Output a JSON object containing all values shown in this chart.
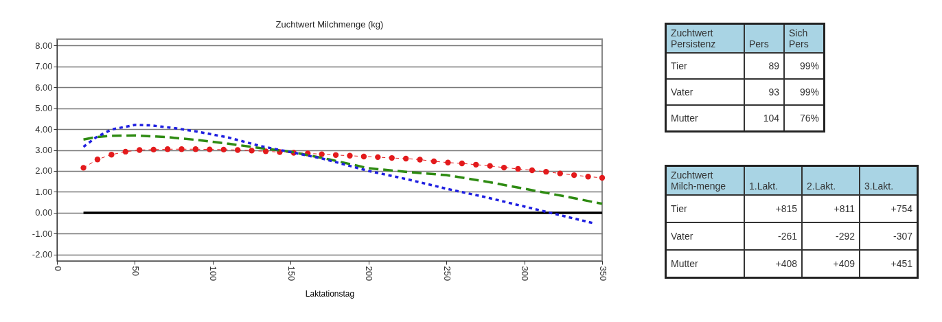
{
  "chart_data": [
    {
      "type": "line",
      "title": "Zuchtwert Milchmenge (kg)",
      "xlabel": "Laktationstag",
      "xlim": [
        0,
        350
      ],
      "xticks": [
        0,
        50,
        100,
        150,
        200,
        250,
        300,
        350
      ],
      "ylim": [
        -2.3,
        8.3
      ],
      "yticks": [
        {
          "value": -2,
          "label": "-2.00"
        },
        {
          "value": -1,
          "label": "-1.00"
        },
        {
          "value": 0,
          "label": "0.00"
        },
        {
          "value": 1,
          "label": "1.00"
        },
        {
          "value": 2,
          "label": "2.00"
        },
        {
          "value": 3,
          "label": "3.00"
        },
        {
          "value": 4,
          "label": "4.00"
        },
        {
          "value": 5,
          "label": "5.00"
        },
        {
          "value": 6,
          "label": "6.00"
        },
        {
          "value": 7,
          "label": "7.00"
        },
        {
          "value": 8,
          "label": "8.00"
        }
      ],
      "grid": "y",
      "series": [
        {
          "color": "#000000",
          "line_style": "solid",
          "x": [
            17,
            350
          ],
          "values": [
            0,
            0
          ]
        },
        {
          "color": "#e31a1c",
          "line_style": "dotted",
          "marker": "circle",
          "x": [
            17,
            26,
            35,
            44,
            53,
            62,
            71,
            80,
            89,
            98,
            107,
            116,
            125,
            134,
            143,
            152,
            161,
            170,
            179,
            188,
            197,
            206,
            215,
            224,
            233,
            242,
            251,
            260,
            269,
            278,
            287,
            296,
            305,
            314,
            323,
            332,
            341,
            350
          ],
          "values": [
            2.15,
            2.55,
            2.78,
            2.92,
            3.0,
            3.02,
            3.04,
            3.04,
            3.04,
            3.03,
            3.02,
            3.0,
            2.97,
            2.94,
            2.9,
            2.87,
            2.84,
            2.8,
            2.76,
            2.73,
            2.69,
            2.66,
            2.62,
            2.59,
            2.54,
            2.46,
            2.4,
            2.36,
            2.3,
            2.24,
            2.16,
            2.1,
            2.03,
            1.96,
            1.88,
            1.8,
            1.73,
            1.67
          ]
        },
        {
          "color": "#2e8b12",
          "line_style": "dashed",
          "x": [
            17,
            25,
            35,
            50,
            70,
            90,
            110,
            130,
            150,
            175,
            200,
            225,
            250,
            275,
            300,
            325,
            350
          ],
          "values": [
            3.5,
            3.62,
            3.68,
            3.7,
            3.62,
            3.48,
            3.3,
            3.1,
            2.92,
            2.55,
            2.13,
            1.95,
            1.8,
            1.5,
            1.15,
            0.8,
            0.43
          ]
        },
        {
          "color": "#1f1fe0",
          "line_style": "dotted",
          "x": [
            17,
            25,
            35,
            50,
            60,
            75,
            90,
            110,
            130,
            150,
            170,
            200,
            225,
            250,
            275,
            300,
            325,
            344
          ],
          "values": [
            3.15,
            3.6,
            3.98,
            4.2,
            4.18,
            4.05,
            3.88,
            3.6,
            3.2,
            2.9,
            2.6,
            2.0,
            1.6,
            1.15,
            0.75,
            0.3,
            -0.15,
            -0.49
          ]
        }
      ]
    },
    {
      "type": "other",
      "title": "Zuchtwert Persistenz",
      "categories": [
        "Pers",
        "Sich Pers"
      ],
      "y_categories": [
        "Tier",
        "Vater",
        "Mutter"
      ],
      "cell_labels": [
        [
          "89",
          "99%"
        ],
        [
          "93",
          "99%"
        ],
        [
          "104",
          "76%"
        ]
      ]
    },
    {
      "type": "other",
      "title": "Zuchtwert Milch-menge",
      "categories": [
        "1.Lakt.",
        "2.Lakt.",
        "3.Lakt."
      ],
      "y_categories": [
        "Tier",
        "Vater",
        "Mutter"
      ],
      "cell_labels": [
        [
          "+815",
          "+811",
          "+754"
        ],
        [
          "-261",
          "-292",
          "-307"
        ],
        [
          "+408",
          "+409",
          "+451"
        ]
      ]
    }
  ]
}
